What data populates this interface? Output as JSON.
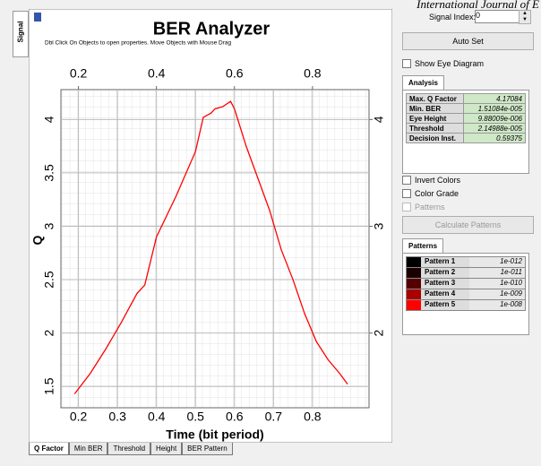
{
  "chart_data": {
    "type": "line",
    "title": "BER Analyzer",
    "subtitle": "Dbl Click On Objects to open properties.  Move Objects with Mouse Drag",
    "xlabel": "Time (bit period)",
    "ylabel": "Q",
    "x": [
      0.19,
      0.23,
      0.27,
      0.31,
      0.35,
      0.37,
      0.4,
      0.45,
      0.5,
      0.52,
      0.54,
      0.55,
      0.57,
      0.59,
      0.6,
      0.63,
      0.66,
      0.69,
      0.72,
      0.75,
      0.78,
      0.81,
      0.84,
      0.87,
      0.89
    ],
    "values": [
      1.43,
      1.62,
      1.85,
      2.1,
      2.37,
      2.45,
      2.9,
      3.28,
      3.7,
      4.02,
      4.06,
      4.1,
      4.12,
      4.17,
      4.1,
      3.75,
      3.45,
      3.15,
      2.78,
      2.5,
      2.18,
      1.92,
      1.75,
      1.62,
      1.52
    ],
    "color": "#ff0000",
    "xlim": [
      0.155,
      0.945
    ],
    "xticks": [
      0.2,
      0.3,
      0.4,
      0.5,
      0.6,
      0.7,
      0.8
    ],
    "xticks_top": [
      0.2,
      0.4,
      0.6,
      0.8
    ],
    "ylim": [
      1.3,
      4.28
    ],
    "yticks": [
      1.5,
      2,
      2.5,
      3,
      3.5,
      4
    ],
    "y2lim": [
      1.3,
      4.28
    ],
    "y2ticks": [
      2,
      3,
      4
    ],
    "grid": true
  },
  "ui": {
    "header_text": "International Journal of E",
    "side_tab": "Signal",
    "bottom_tabs": [
      "Q Factor",
      "Min BER",
      "Threshold",
      "Height",
      "BER Pattern"
    ],
    "signal_index_label": "Signal Index:",
    "signal_index": "0",
    "auto_set": "Auto Set",
    "show_eye": "Show Eye Diagram",
    "analysis_tab": "Analysis",
    "analysis": [
      [
        "Max. Q Factor",
        "4.17084"
      ],
      [
        "Min. BER",
        "1.51084e-005"
      ],
      [
        "Eye Height",
        "9.88009e-006"
      ],
      [
        "Threshold",
        "2.14988e-005"
      ],
      [
        "Decision Inst.",
        "0.59375"
      ]
    ],
    "invert": "Invert Colors",
    "color_grade": "Color Grade",
    "patterns_cb": "Patterns",
    "calc": "Calculate Patterns",
    "patterns_tab": "Patterns",
    "patterns": [
      {
        "label": "Pattern 1",
        "value": "1e-012",
        "color": "#000000"
      },
      {
        "label": "Pattern 2",
        "value": "1e-011",
        "color": "#1a0000"
      },
      {
        "label": "Pattern 3",
        "value": "1e-010",
        "color": "#550000"
      },
      {
        "label": "Pattern 4",
        "value": "1e-009",
        "color": "#aa0000"
      },
      {
        "label": "Pattern 5",
        "value": "1e-008",
        "color": "#ff0000"
      }
    ]
  }
}
